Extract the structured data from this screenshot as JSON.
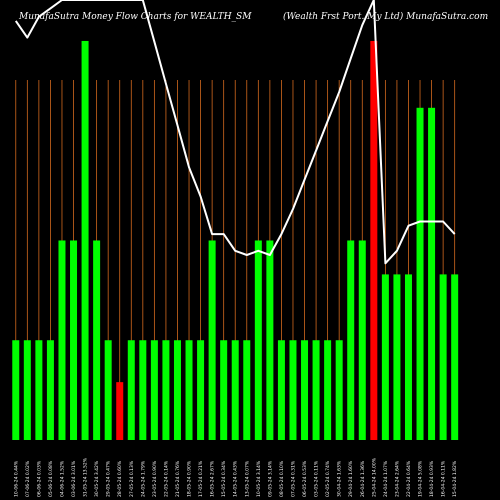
{
  "chart_data": {
    "type": "bar",
    "title_left": "MunafaSutra  Money Flow  Charts for WEALTH_SM",
    "title_right": "(Wealth Frst Port. My Ltd) MunafaSutra.com",
    "bars": [
      {
        "label": "10-06-24 0.44%",
        "value": 1,
        "color": "green"
      },
      {
        "label": "07-06-24 0.02%",
        "value": 1,
        "color": "green"
      },
      {
        "label": "06-06-24 0.03%",
        "value": 1,
        "color": "green"
      },
      {
        "label": "05-06-24 0.08%",
        "value": 1,
        "color": "green"
      },
      {
        "label": "04-06-24 1.52%",
        "value": 2,
        "color": "green"
      },
      {
        "label": "03-06-24 3.01%",
        "value": 2,
        "color": "green"
      },
      {
        "label": "31-05-24 13.52%",
        "value": 4,
        "color": "green"
      },
      {
        "label": "30-05-24 3.42%",
        "value": 2,
        "color": "green"
      },
      {
        "label": "29-05-24 0.47%",
        "value": 1,
        "color": "green"
      },
      {
        "label": "28-05-24 0.60%",
        "value": 0.58,
        "color": "red"
      },
      {
        "label": "27-05-24 0.13%",
        "value": 1,
        "color": "green"
      },
      {
        "label": "24-05-24 1.79%",
        "value": 1,
        "color": "green"
      },
      {
        "label": "23-05-24 0.90%",
        "value": 1,
        "color": "green"
      },
      {
        "label": "22-05-24 0.14%",
        "value": 1,
        "color": "green"
      },
      {
        "label": "21-05-24 0.76%",
        "value": 1,
        "color": "green"
      },
      {
        "label": "18-05-24 0.90%",
        "value": 1,
        "color": "green"
      },
      {
        "label": "17-05-24 0.21%",
        "value": 1,
        "color": "green"
      },
      {
        "label": "16-05-24 2.67%",
        "value": 2,
        "color": "green"
      },
      {
        "label": "15-05-24 0.34%",
        "value": 1,
        "color": "green"
      },
      {
        "label": "14-05-24 0.43%",
        "value": 1,
        "color": "green"
      },
      {
        "label": "13-05-24 0.07%",
        "value": 1,
        "color": "green"
      },
      {
        "label": "10-05-24 3.14%",
        "value": 2,
        "color": "green"
      },
      {
        "label": "09-05-24 3.14%",
        "value": 2,
        "color": "green"
      },
      {
        "label": "08-05-24 0.10%",
        "value": 1,
        "color": "green"
      },
      {
        "label": "07-05-24 0.31%",
        "value": 1,
        "color": "green"
      },
      {
        "label": "06-05-24 0.53%",
        "value": 1,
        "color": "green"
      },
      {
        "label": "03-05-24 0.11%",
        "value": 1,
        "color": "green"
      },
      {
        "label": "02-05-24 0.74%",
        "value": 1,
        "color": "green"
      },
      {
        "label": "30-04-24 1.63%",
        "value": 1,
        "color": "green"
      },
      {
        "label": "29-04-24 1.60%",
        "value": 2,
        "color": "green"
      },
      {
        "label": "26-04-24 1.36%",
        "value": 2,
        "color": "green"
      },
      {
        "label": "25-04-24 14.00%",
        "value": 4,
        "color": "red"
      },
      {
        "label": "24-04-24 1.07%",
        "value": 1.66,
        "color": "green"
      },
      {
        "label": "23-04-24 2.64%",
        "value": 1.66,
        "color": "green"
      },
      {
        "label": "22-04-24 0.64%",
        "value": 1.66,
        "color": "green"
      },
      {
        "label": "19-04-24 5.08%",
        "value": 3.33,
        "color": "green"
      },
      {
        "label": "18-04-24 0.93%",
        "value": 3.33,
        "color": "green"
      },
      {
        "label": "16-04-24 0.11%",
        "value": 1.66,
        "color": "green"
      },
      {
        "label": "15-04-24 1.82%",
        "value": 1.66,
        "color": "green"
      }
    ],
    "line": [
      95,
      91,
      96,
      98,
      100,
      100,
      100,
      100,
      100,
      100,
      100,
      100,
      90,
      80,
      70,
      60,
      53,
      44,
      44,
      40,
      39,
      40,
      39,
      44,
      50,
      57,
      64,
      71,
      78,
      86,
      94,
      100,
      37,
      40,
      46,
      47,
      47,
      47,
      44
    ],
    "ymax": 4.16,
    "colors": {
      "green": "#00ff00",
      "red": "#ff0000",
      "line": "#ffffff",
      "grid": "#d2691e",
      "background": "#000000"
    }
  }
}
